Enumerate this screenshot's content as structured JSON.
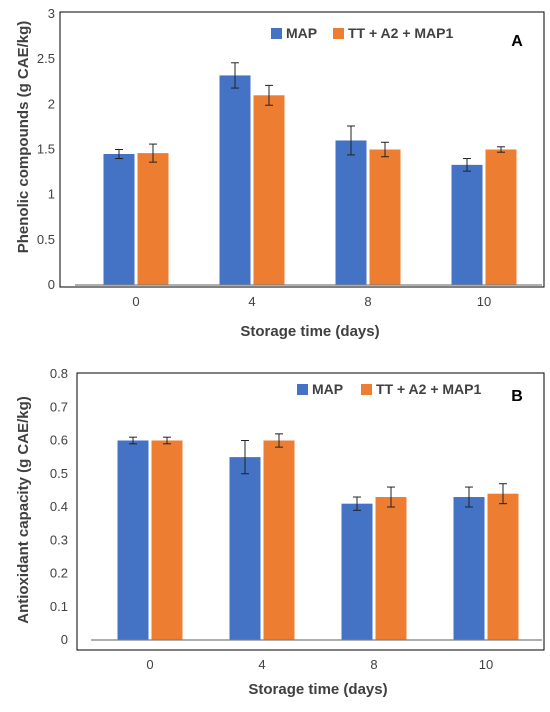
{
  "chart_data": [
    {
      "type": "bar",
      "panel_label": "A",
      "categories": [
        "0",
        "4",
        "8",
        "10"
      ],
      "series": [
        {
          "name": "MAP",
          "color": "#4472C4",
          "values": [
            1.45,
            2.32,
            1.6,
            1.33
          ],
          "errors": [
            0.05,
            0.14,
            0.16,
            0.07
          ]
        },
        {
          "name": "TT + A2 + MAP1",
          "color": "#ED7D31",
          "values": [
            1.46,
            2.1,
            1.5,
            1.5
          ],
          "errors": [
            0.1,
            0.11,
            0.08,
            0.03
          ]
        }
      ],
      "xlabel": "Storage time (days)",
      "ylabel": "Phenolic compounds (g CAE/kg)",
      "ylim": [
        0,
        3
      ],
      "yticks": [
        "0",
        "0.5",
        "1",
        "1.5",
        "2",
        "2.5",
        "3"
      ],
      "legend_position": "top-right",
      "grid": false
    },
    {
      "type": "bar",
      "panel_label": "B",
      "categories": [
        "0",
        "4",
        "8",
        "10"
      ],
      "series": [
        {
          "name": "MAP",
          "color": "#4472C4",
          "values": [
            0.6,
            0.55,
            0.41,
            0.43
          ],
          "errors": [
            0.01,
            0.05,
            0.02,
            0.03
          ]
        },
        {
          "name": "TT + A2 + MAP1",
          "color": "#ED7D31",
          "values": [
            0.6,
            0.6,
            0.43,
            0.44
          ],
          "errors": [
            0.01,
            0.02,
            0.03,
            0.03
          ]
        }
      ],
      "xlabel": "Storage time (days)",
      "ylabel": "Antioxidant capacity (g CAE/kg)",
      "ylim": [
        0,
        0.8
      ],
      "yticks": [
        "0",
        "0.1",
        "0.2",
        "0.3",
        "0.4",
        "0.5",
        "0.6",
        "0.7",
        "0.8"
      ],
      "legend_position": "top-right",
      "grid": false
    }
  ]
}
